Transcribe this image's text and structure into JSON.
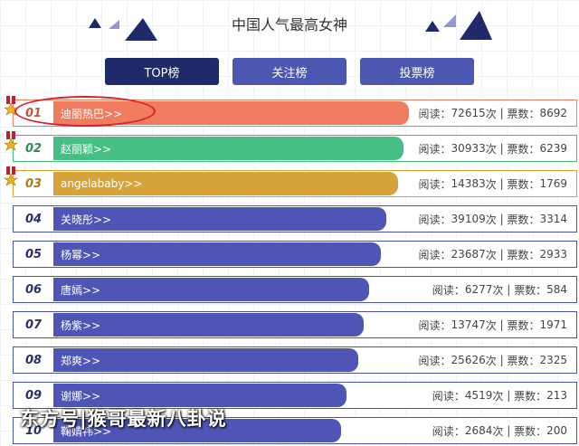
{
  "header": {
    "title": "中国人气最高女神"
  },
  "tabs": [
    {
      "label": "TOP榜",
      "active": true
    },
    {
      "label": "关注榜",
      "active": false
    },
    {
      "label": "投票榜",
      "active": false
    }
  ],
  "colors": {
    "top1": "#f07c5f",
    "top2": "#45bf84",
    "top3": "#d6a43a",
    "rest": "#4e55b4",
    "tab_active": "#1f2a6b",
    "tab_inactive": "#4b57b0"
  },
  "stats_labels": {
    "reads": "阅读",
    "votes": "票数",
    "unit": "次"
  },
  "ranking": [
    {
      "rank": "01",
      "name": "迪丽热巴>>",
      "reads": "72615",
      "votes": "8692",
      "bar_fraction": 0.63
    },
    {
      "rank": "02",
      "name": "赵丽颖>>",
      "reads": "30933",
      "votes": "6239",
      "bar_fraction": 0.62
    },
    {
      "rank": "03",
      "name": "angelababy>>",
      "reads": "14383",
      "votes": "1769",
      "bar_fraction": 0.61
    },
    {
      "rank": "04",
      "name": "关晓彤>>",
      "reads": "39109",
      "votes": "3314",
      "bar_fraction": 0.59
    },
    {
      "rank": "05",
      "name": "杨幂>>",
      "reads": "23687",
      "votes": "2933",
      "bar_fraction": 0.58
    },
    {
      "rank": "06",
      "name": "唐嫣>>",
      "reads": "6277",
      "votes": "584",
      "bar_fraction": 0.56
    },
    {
      "rank": "07",
      "name": "杨紫>>",
      "reads": "13747",
      "votes": "1971",
      "bar_fraction": 0.55
    },
    {
      "rank": "08",
      "name": "郑爽>>",
      "reads": "25626",
      "votes": "2325",
      "bar_fraction": 0.54
    },
    {
      "rank": "09",
      "name": "谢娜>>",
      "reads": "4519",
      "votes": "213",
      "bar_fraction": 0.52
    },
    {
      "rank": "10",
      "name": "鞠婧祎>>",
      "reads": "2684",
      "votes": "200",
      "bar_fraction": 0.51
    }
  ],
  "watermark": "东方号|猴哥最新八卦说",
  "icons": {
    "medal": "medal-icon",
    "decor": "triangle-decoration-icon"
  }
}
